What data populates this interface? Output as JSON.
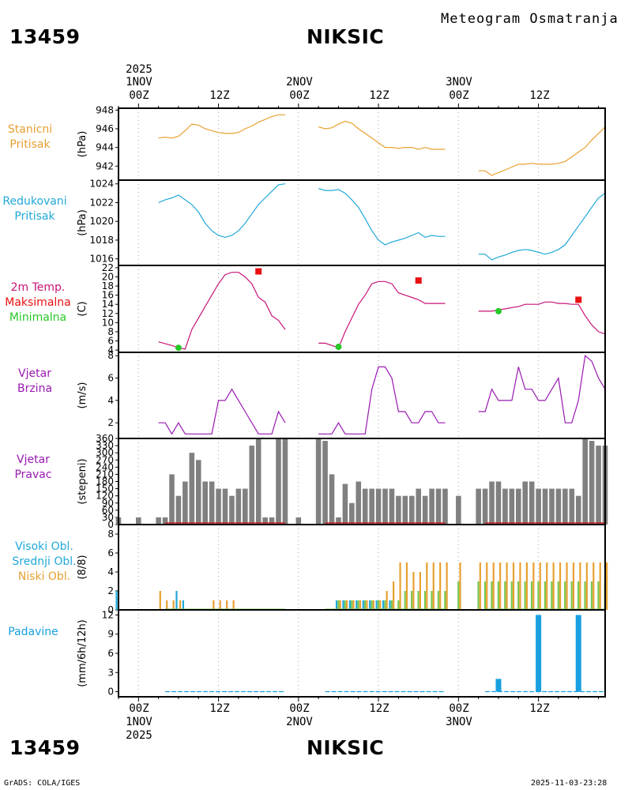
{
  "header": {
    "station_id": "13459",
    "station_name": "NIKSIC",
    "product_title": "Meteogram Osmatranja",
    "year": "2025"
  },
  "footer": {
    "credit": "GrADS: COLA/IGES",
    "timestamp": "2025-11-03-23:28"
  },
  "time_axis": {
    "top_labels": [
      {
        "day": "1NOV",
        "hour": "00Z"
      },
      {
        "day": "",
        "hour": "12Z"
      },
      {
        "day": "2NOV",
        "hour": "00Z"
      },
      {
        "day": "",
        "hour": "12Z"
      },
      {
        "day": "3NOV",
        "hour": "00Z"
      },
      {
        "day": "",
        "hour": "12Z"
      }
    ],
    "bottom_labels": [
      {
        "hour": "00Z",
        "day": "1NOV"
      },
      {
        "hour": "12Z",
        "day": ""
      },
      {
        "hour": "00Z",
        "day": "2NOV"
      },
      {
        "hour": "12Z",
        "day": ""
      },
      {
        "hour": "00Z",
        "day": "3NOV"
      },
      {
        "hour": "12Z",
        "day": ""
      }
    ],
    "range_hours": [
      -3,
      70
    ]
  },
  "colors": {
    "pressure_station": "#e8a030",
    "pressure_reduced": "#20a8d8",
    "temperature": "#c81478",
    "tmax": "#e81010",
    "tmin": "#28c828",
    "wind": "#9818b0",
    "wind_dir": "#808080",
    "cloud_high": "#20a8d8",
    "cloud_mid": "#78c850",
    "cloud_low": "#e8a030",
    "precip": "#18a0e0"
  },
  "panels": {
    "station_pressure": {
      "label1": "Stanicni",
      "label2": "Pritisak",
      "unit": "(hPa)",
      "ticks": [
        "948",
        "946",
        "944",
        "942"
      ]
    },
    "reduced_pressure": {
      "label1": "Redukovani",
      "label2": "Pritisak",
      "unit": "(hPa)",
      "ticks": [
        "1024",
        "1022",
        "1020",
        "1018",
        "1016"
      ]
    },
    "temperature": {
      "label1": "2m Temp.",
      "label2": "Maksimalna",
      "label3": "Minimalna",
      "unit": "(C)",
      "ticks": [
        "22",
        "20",
        "18",
        "16",
        "14",
        "12",
        "10",
        "8",
        "6",
        "4"
      ]
    },
    "wind_speed": {
      "label1": "Vjetar",
      "label2": "Brzina",
      "unit": "(m/s)",
      "ticks": [
        "8",
        "6",
        "4",
        "2"
      ]
    },
    "wind_direction": {
      "label1": "Vjetar",
      "label2": "Pravac",
      "unit": "(stepeni)",
      "ticks": [
        "360",
        "330",
        "300",
        "270",
        "240",
        "210",
        "180",
        "150",
        "120",
        "90",
        "60",
        "30",
        "0"
      ]
    },
    "clouds": {
      "label1": "Visoki Obl.",
      "label2": "Srednji Obl.",
      "label3": "Niski Obl.",
      "unit": "(8/8)",
      "ticks": [
        "8",
        "6",
        "4",
        "2",
        "0"
      ]
    },
    "precipitation": {
      "label1": "Padavine",
      "unit": "(mm/6h/12h)",
      "ticks": [
        "12",
        "9",
        "6",
        "3",
        "0"
      ]
    }
  },
  "chart_data": [
    {
      "type": "line",
      "name": "station_pressure",
      "xlabel": "hours since 1NOV 00Z",
      "ylabel": "hPa",
      "ylim": [
        940.5,
        948.2
      ],
      "series": [
        {
          "name": "Stanicni Pritisak",
          "x": [
            3,
            4,
            5,
            6,
            7,
            8,
            9,
            10,
            11,
            12,
            13,
            14,
            15,
            16,
            17,
            18,
            19,
            20,
            21,
            22
          ],
          "values": [
            945.0,
            945.1,
            945.0,
            945.2,
            945.8,
            946.5,
            946.4,
            946.0,
            945.8,
            945.6,
            945.5,
            945.5,
            945.6,
            946.0,
            946.3,
            946.7,
            947.0,
            947.3,
            947.5,
            947.5
          ]
        },
        {
          "name": "Stanicni Pritisak",
          "x": [
            27,
            28,
            29,
            30,
            31,
            32,
            33,
            34,
            35,
            36,
            37,
            38,
            39,
            40,
            41,
            42,
            43,
            44,
            45,
            46
          ],
          "values": [
            946.2,
            946.0,
            946.1,
            946.5,
            946.8,
            946.6,
            946.0,
            945.5,
            945.0,
            944.5,
            944.0,
            944.0,
            943.9,
            944.0,
            944.0,
            943.8,
            944.0,
            943.8,
            943.8,
            943.8
          ]
        },
        {
          "name": "Stanicni Pritisak",
          "x": [
            51,
            52,
            53,
            54,
            55,
            56,
            57,
            58,
            59,
            60,
            61,
            62,
            63,
            64,
            65,
            66,
            67,
            68,
            69,
            70
          ],
          "values": [
            941.5,
            941.5,
            941.0,
            941.3,
            941.6,
            941.9,
            942.2,
            942.2,
            942.3,
            942.2,
            942.2,
            942.2,
            942.3,
            942.5,
            943.0,
            943.5,
            944.0,
            944.8,
            945.5,
            946.2
          ]
        }
      ]
    },
    {
      "type": "line",
      "name": "reduced_pressure",
      "xlabel": "hours since 1NOV 00Z",
      "ylabel": "hPa",
      "ylim": [
        1015.3,
        1024.4
      ],
      "series": [
        {
          "name": "Redukovani Pritisak",
          "x": [
            3,
            4,
            5,
            6,
            7,
            8,
            9,
            10,
            11,
            12,
            13,
            14,
            15,
            16,
            17,
            18,
            19,
            20,
            21,
            22
          ],
          "values": [
            1022.0,
            1022.3,
            1022.5,
            1022.8,
            1022.3,
            1021.8,
            1021.0,
            1019.8,
            1019.0,
            1018.5,
            1018.3,
            1018.5,
            1019.0,
            1019.8,
            1020.8,
            1021.8,
            1022.5,
            1023.2,
            1023.9,
            1024.0
          ]
        },
        {
          "name": "Redukovani Pritisak",
          "x": [
            27,
            28,
            29,
            30,
            31,
            32,
            33,
            34,
            35,
            36,
            37,
            38,
            39,
            40,
            41,
            42,
            43,
            44,
            45,
            46
          ],
          "values": [
            1023.5,
            1023.3,
            1023.3,
            1023.4,
            1023.0,
            1022.3,
            1021.5,
            1020.3,
            1019.0,
            1018.0,
            1017.5,
            1017.8,
            1018.0,
            1018.2,
            1018.5,
            1018.8,
            1018.3,
            1018.5,
            1018.4,
            1018.4
          ]
        },
        {
          "name": "Redukovani Pritisak",
          "x": [
            51,
            52,
            53,
            54,
            55,
            56,
            57,
            58,
            59,
            60,
            61,
            62,
            63,
            64,
            65,
            66,
            67,
            68,
            69,
            70
          ],
          "values": [
            1016.5,
            1016.5,
            1015.9,
            1016.2,
            1016.4,
            1016.7,
            1016.9,
            1017.0,
            1016.9,
            1016.7,
            1016.5,
            1016.7,
            1017.0,
            1017.5,
            1018.5,
            1019.5,
            1020.5,
            1021.5,
            1022.5,
            1023.0
          ]
        }
      ]
    },
    {
      "type": "line",
      "name": "temperature",
      "xlabel": "hours since 1NOV 00Z",
      "ylabel": "C",
      "ylim": [
        3.5,
        22.5
      ],
      "series": [
        {
          "name": "2m Temp.",
          "x": [
            3,
            5,
            6,
            7,
            8,
            9,
            10,
            11,
            12,
            13,
            14,
            15,
            16,
            17,
            18,
            19,
            20,
            21,
            22
          ],
          "values": [
            5.8,
            5.0,
            4.5,
            4.2,
            8.5,
            11.0,
            13.5,
            16.0,
            18.5,
            20.5,
            21.0,
            21.0,
            20.0,
            18.5,
            15.5,
            14.5,
            11.5,
            10.5,
            8.5
          ]
        },
        {
          "name": "2m Temp.",
          "x": [
            27,
            28,
            29,
            30,
            31,
            32,
            33,
            34,
            35,
            36,
            37,
            38,
            39,
            40,
            41,
            42,
            43,
            44,
            45,
            46
          ],
          "values": [
            5.5,
            5.5,
            5.0,
            4.5,
            8.0,
            11.0,
            14.0,
            16.0,
            18.5,
            19.0,
            19.0,
            18.5,
            16.5,
            16.0,
            15.5,
            15.0,
            14.2,
            14.2,
            14.2,
            14.2
          ]
        },
        {
          "name": "2m Temp.",
          "x": [
            51,
            52,
            53,
            54,
            55,
            56,
            57,
            58,
            59,
            60,
            61,
            62,
            63,
            64,
            65,
            66,
            67,
            68,
            69,
            70
          ],
          "values": [
            12.5,
            12.5,
            12.5,
            12.8,
            13.0,
            13.3,
            13.5,
            14.0,
            14.0,
            14.0,
            14.5,
            14.5,
            14.2,
            14.2,
            14.0,
            14.0,
            11.5,
            9.5,
            8.0,
            7.5
          ]
        },
        {
          "name": "Maksimalna",
          "x": [
            18,
            42,
            66
          ],
          "values": [
            21.2,
            19.2,
            15.0
          ]
        },
        {
          "name": "Minimalna",
          "x": [
            6,
            30,
            54
          ],
          "values": [
            4.5,
            4.7,
            12.5
          ]
        }
      ]
    },
    {
      "type": "line",
      "name": "wind_speed",
      "xlabel": "hours since 1NOV 00Z",
      "ylabel": "m/s",
      "ylim": [
        0.6,
        8.3
      ],
      "series": [
        {
          "name": "Vjetar Brzina",
          "x": [
            3,
            4,
            5,
            6,
            7,
            8,
            9,
            10,
            11,
            12,
            13,
            14,
            15,
            16,
            17,
            18,
            19,
            20,
            21,
            22
          ],
          "values": [
            2,
            2,
            1,
            2,
            1,
            1,
            1,
            1,
            1,
            4,
            4,
            5,
            4,
            3,
            2,
            1,
            1,
            1,
            3,
            2
          ]
        },
        {
          "name": "Vjetar Brzina",
          "x": [
            27,
            28,
            29,
            30,
            31,
            32,
            33,
            34,
            35,
            36,
            37,
            38,
            39,
            40,
            41,
            42,
            43,
            44,
            45,
            46
          ],
          "values": [
            1,
            1,
            1,
            2,
            1,
            1,
            1,
            1,
            5,
            7,
            7,
            6,
            3,
            3,
            2,
            2,
            3,
            3,
            2,
            2
          ]
        },
        {
          "name": "Vjetar Brzina",
          "x": [
            51,
            52,
            53,
            54,
            55,
            56,
            57,
            58,
            59,
            60,
            61,
            62,
            63,
            64,
            65,
            66,
            67,
            68,
            69,
            70
          ],
          "values": [
            3,
            3,
            5,
            4,
            4,
            4,
            7,
            5,
            5,
            4,
            4,
            5,
            6,
            2,
            2,
            4,
            8,
            7.5,
            6,
            5
          ]
        }
      ]
    },
    {
      "type": "bar",
      "name": "wind_direction",
      "xlabel": "hours since 1NOV 00Z",
      "ylabel": "stepeni",
      "ylim": [
        0,
        360
      ],
      "x": [
        -3,
        0,
        3,
        4,
        5,
        6,
        7,
        8,
        9,
        10,
        11,
        12,
        13,
        14,
        15,
        16,
        17,
        18,
        19,
        20,
        21,
        22,
        24,
        27,
        28,
        29,
        30,
        31,
        32,
        33,
        34,
        35,
        36,
        37,
        38,
        39,
        40,
        41,
        42,
        43,
        44,
        45,
        46,
        48,
        51,
        52,
        53,
        54,
        55,
        56,
        57,
        58,
        59,
        60,
        61,
        62,
        63,
        64,
        65,
        66,
        67,
        68,
        69,
        70
      ],
      "values": [
        30,
        30,
        30,
        30,
        210,
        120,
        180,
        300,
        270,
        180,
        180,
        150,
        150,
        120,
        150,
        150,
        330,
        360,
        30,
        30,
        360,
        360,
        30,
        360,
        350,
        210,
        30,
        170,
        90,
        180,
        150,
        150,
        150,
        150,
        150,
        120,
        120,
        120,
        150,
        120,
        150,
        150,
        150,
        120,
        150,
        150,
        180,
        180,
        150,
        150,
        150,
        180,
        180,
        150,
        150,
        150,
        150,
        150,
        150,
        120,
        360,
        350,
        330,
        330
      ]
    },
    {
      "type": "bar",
      "name": "clouds",
      "xlabel": "hours since 1NOV 00Z",
      "ylabel": "8/8",
      "ylim": [
        0,
        9
      ],
      "x": [
        -3,
        3,
        4,
        5,
        6,
        7,
        11,
        12,
        13,
        14,
        30,
        31,
        32,
        33,
        34,
        35,
        36,
        37,
        38,
        39,
        40,
        41,
        42,
        43,
        44,
        45,
        46,
        48,
        51,
        52,
        53,
        54,
        55,
        56,
        57,
        58,
        59,
        60,
        61,
        62,
        63,
        64,
        65,
        66,
        67,
        68,
        69,
        70
      ],
      "series": [
        {
          "name": "Visoki Obl.",
          "values": [
            2,
            0,
            0,
            0,
            2,
            1,
            0,
            0,
            0,
            0,
            1,
            1,
            1,
            1,
            1,
            1,
            1,
            1,
            1,
            0,
            0,
            0,
            0,
            0,
            0,
            0,
            0,
            0,
            0,
            0,
            0,
            0,
            0,
            0,
            0,
            0,
            0,
            0,
            0,
            0,
            0,
            0,
            0,
            0,
            0,
            0,
            0,
            0
          ]
        },
        {
          "name": "Srednji Obl.",
          "values": [
            0,
            0,
            0,
            0,
            0,
            0,
            0,
            0,
            0,
            0,
            1,
            1,
            1,
            1,
            1,
            1,
            1,
            1,
            1,
            1,
            2,
            2,
            2,
            2,
            2,
            2,
            2,
            3,
            3,
            3,
            3,
            3,
            3,
            3,
            3,
            3,
            3,
            3,
            3,
            3,
            3,
            3,
            3,
            3,
            3,
            3,
            3,
            3
          ]
        },
        {
          "name": "Niski Obl.",
          "values": [
            0,
            2,
            1,
            1,
            1,
            0,
            1,
            1,
            1,
            1,
            1,
            1,
            1,
            1,
            1,
            1,
            1,
            2,
            3,
            5,
            5,
            4,
            4,
            5,
            5,
            5,
            5,
            5,
            5,
            5,
            5,
            5,
            5,
            5,
            5,
            5,
            5,
            5,
            5,
            5,
            5,
            5,
            5,
            5,
            5,
            5,
            5,
            5
          ]
        }
      ]
    },
    {
      "type": "bar",
      "name": "precipitation",
      "xlabel": "hours since 1NOV 00Z",
      "ylabel": "mm/6h/12h",
      "ylim": [
        -0.8,
        12.8
      ],
      "x": [
        54,
        60,
        66
      ],
      "values": [
        2,
        12,
        12
      ]
    }
  ]
}
